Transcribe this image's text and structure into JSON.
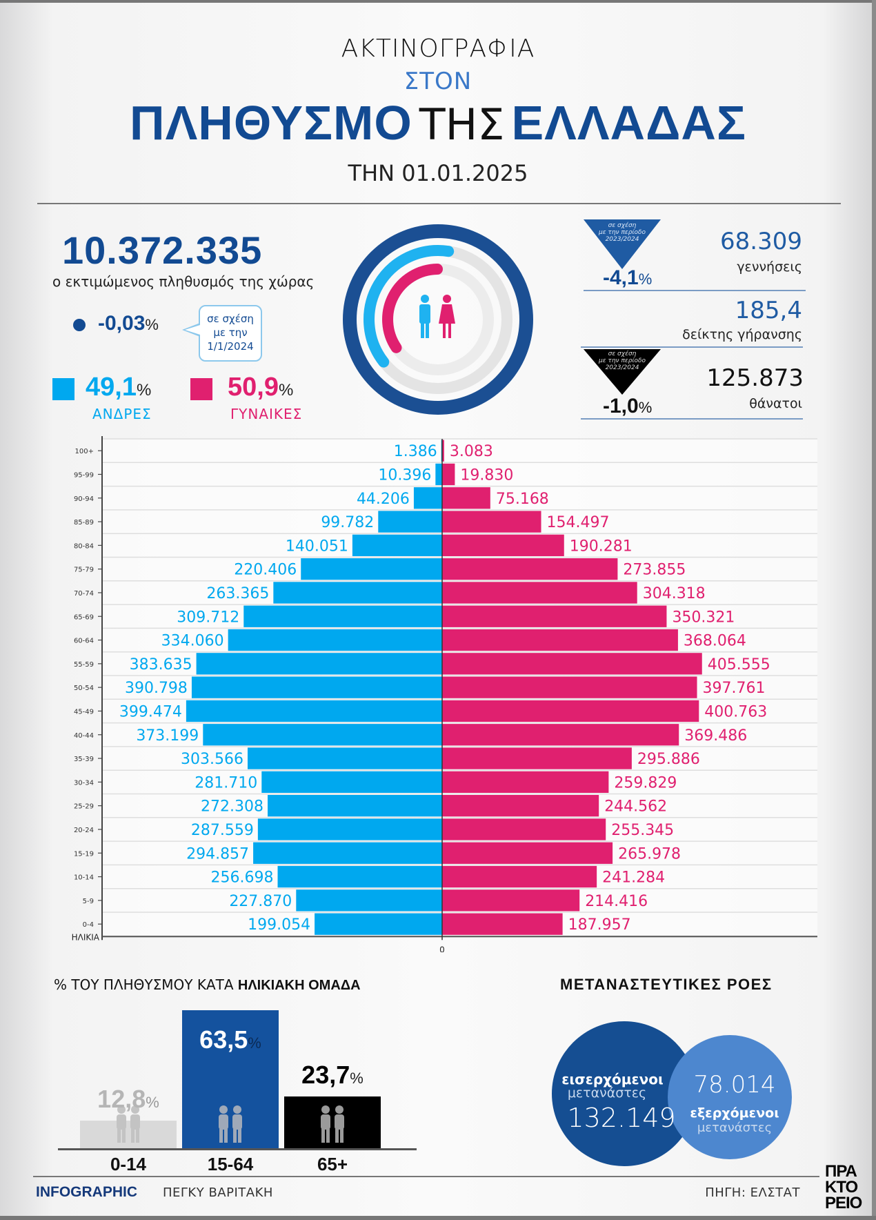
{
  "header": {
    "line1": "ΑΚΤΙΝΟΓΡΑΦΙΑ",
    "line2": "ΣΤΟΝ",
    "title_bold1": "ΠΛΗΘΥΣΜΟ",
    "title_light": "ΤΗΣ",
    "title_bold2": "ΕΛΛΑΔΑΣ",
    "date": "ΤΗΝ 01.01.2025"
  },
  "population": {
    "total": "10.372.335",
    "label": "ο εκτιμώμενος πληθυσμός της χώρας",
    "change_value": "-0,03",
    "change_unit": "%",
    "comparison_line1": "σε σχέση",
    "comparison_line2": "με την",
    "comparison_line3": "1/1/2024"
  },
  "gender": {
    "male_pct": "49,1",
    "female_pct": "50,9",
    "pct_unit": "%",
    "male_label": "ΑΝΔΡΕΣ",
    "female_label": "ΓΥΝΑΙΚΕΣ",
    "male_share": 49.1,
    "female_share": 50.9
  },
  "colors": {
    "male": "#00a8ef",
    "female": "#e0206f",
    "navy": "#124a92",
    "age_0_14": "#d9d9d9",
    "age_15_64": "#14529e",
    "age_65_plus": "#000000",
    "mig_in": "#154e92",
    "mig_out": "#4d87cf"
  },
  "stats": {
    "births": {
      "change_note_1": "σε σχέση",
      "change_note_2": "με την περίοδο",
      "change_note_3": "2023/2024",
      "change": "-4,1",
      "unit": "%",
      "value": "68.309",
      "label": "γεννήσεις"
    },
    "aging": {
      "value": "185,4",
      "label": "δείκτης γήρανσης"
    },
    "deaths": {
      "change_note_1": "σε σχέση",
      "change_note_2": "με την περίοδο",
      "change_note_3": "2023/2024",
      "change": "-1,0",
      "unit": "%",
      "value": "125.873",
      "label": "θάνατοι"
    }
  },
  "chart_data": [
    {
      "type": "bar",
      "subtype": "population-pyramid",
      "title": "",
      "xlabel": "",
      "ylabel": "ΗΛΙΚΙΑ",
      "zero_label": "0",
      "categories": [
        "100+",
        "95-99",
        "90-94",
        "85-89",
        "80-84",
        "75-79",
        "70-74",
        "65-69",
        "60-64",
        "55-59",
        "50-54",
        "45-49",
        "40-44",
        "35-39",
        "30-34",
        "25-29",
        "20-24",
        "15-19",
        "10-14",
        "5-9",
        "0-4"
      ],
      "series": [
        {
          "name": "ΑΝΔΡΕΣ",
          "side": "left",
          "values": [
            1386,
            10396,
            44206,
            99782,
            140051,
            220406,
            263365,
            309712,
            334060,
            383635,
            390798,
            399474,
            373199,
            303566,
            281710,
            272308,
            287559,
            294857,
            256698,
            227870,
            199054
          ],
          "labels": [
            "1.386",
            "10.396",
            "44.206",
            "99.782",
            "140.051",
            "220.406",
            "263.365",
            "309.712",
            "334.060",
            "383.635",
            "390.798",
            "399.474",
            "373.199",
            "303.566",
            "281.710",
            "272.308",
            "287.559",
            "294.857",
            "256.698",
            "227.870",
            "199.054"
          ]
        },
        {
          "name": "ΓΥΝΑΙΚΕΣ",
          "side": "right",
          "values": [
            3083,
            19830,
            75168,
            154497,
            190281,
            273855,
            304318,
            350321,
            368064,
            405555,
            397761,
            400763,
            369486,
            295886,
            259829,
            244562,
            255345,
            265978,
            241284,
            214416,
            187957
          ],
          "labels": [
            "3.083",
            "19.830",
            "75.168",
            "154.497",
            "190.281",
            "273.855",
            "304.318",
            "350.321",
            "368.064",
            "405.555",
            "397.761",
            "400.763",
            "369.486",
            "295.886",
            "259.829",
            "244.562",
            "255.345",
            "265.978",
            "241.284",
            "214.416",
            "187.957"
          ]
        }
      ],
      "xlim": [
        0,
        430000
      ],
      "grid": true
    },
    {
      "type": "bar",
      "title_regular": "% ΤΟΥ ΠΛΗΘΥΣΜΟΥ ΚΑΤΑ",
      "title_bold": "ΗΛΙΚΙΑΚΗ ΟΜΑΔΑ",
      "categories": [
        "0-14",
        "15-64",
        "65+"
      ],
      "values": [
        12.8,
        63.5,
        23.7
      ],
      "labels": [
        "12,8",
        "63,5",
        "23,7"
      ],
      "unit": "%",
      "ylim": [
        0,
        63.5
      ]
    }
  ],
  "migration": {
    "title": "ΜΕΤΑΝΑΣΤΕΥΤΙΚΕΣ ΡΟΕΣ",
    "incoming_bold": "εισερχόμενοι",
    "incoming_sub": "μετανάστες",
    "incoming_value": "132.149",
    "outgoing_value": "78.014",
    "outgoing_bold": "εξερχόμενοι",
    "outgoing_sub": "μετανάστες"
  },
  "footer": {
    "infographic": "INFOGRAPHIC",
    "author": "ΠΕΓΚΥ ΒΑΡΙΤΑΚΗ",
    "source": "ΠΗΓΗ: ΕΛΣΤΑΤ",
    "logo_l1": "ΠΡΑ",
    "logo_l2": "ΚΤΟ",
    "logo_l3": "ΡΕΙΟ"
  }
}
